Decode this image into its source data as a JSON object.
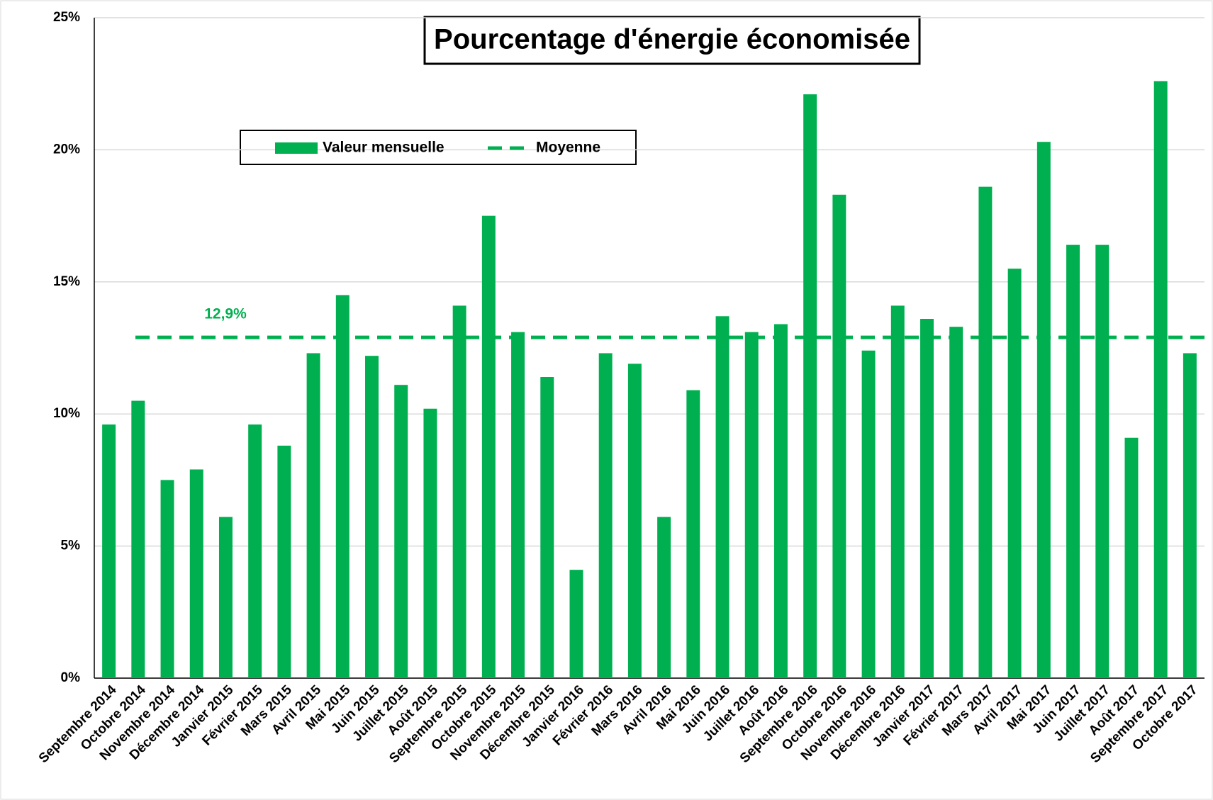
{
  "chart_data": {
    "type": "bar",
    "title": "Pourcentage d'énergie économisée",
    "categories": [
      "Septembre 2014",
      "Octobre 2014",
      "Novembre 2014",
      "Décembre 2014",
      "Janvier 2015",
      "Février 2015",
      "Mars 2015",
      "Avril 2015",
      "Mai 2015",
      "Juin 2015",
      "Juillet 2015",
      "Août 2015",
      "Septembre 2015",
      "Octobre 2015",
      "Novembre 2015",
      "Décembre 2015",
      "Janvier 2016",
      "Février 2016",
      "Mars 2016",
      "Avril 2016",
      "Mai 2016",
      "Juin 2016",
      "Juillet 2016",
      "Août 2016",
      "Septembre 2016",
      "Octobre 2016",
      "Novembre 2016",
      "Décembre 2016",
      "Janvier 2017",
      "Février 2017",
      "Mars 2017",
      "Avril 2017",
      "Mai 2017",
      "Juin 2017",
      "Juillet 2017",
      "Août 2017",
      "Septembre 2017",
      "Octobre 2017"
    ],
    "series": [
      {
        "name": "Valeur mensuelle",
        "color": "#00b050",
        "values": [
          9.6,
          10.5,
          7.5,
          7.9,
          6.1,
          9.6,
          8.8,
          12.3,
          14.5,
          12.2,
          11.1,
          10.2,
          14.1,
          17.5,
          13.1,
          11.4,
          4.1,
          12.3,
          11.9,
          6.1,
          10.9,
          13.7,
          13.1,
          13.4,
          22.1,
          18.3,
          12.4,
          14.1,
          13.6,
          13.3,
          18.6,
          15.5,
          20.3,
          16.4,
          16.4,
          9.1,
          22.6,
          12.3
        ]
      }
    ],
    "mean": {
      "name": "Moyenne",
      "value": 12.9,
      "label": "12,9%",
      "color": "#00b050"
    },
    "ylim": [
      0,
      25
    ],
    "yticks": [
      {
        "value": 0,
        "label": "0%"
      },
      {
        "value": 5,
        "label": "5%"
      },
      {
        "value": 10,
        "label": "10%"
      },
      {
        "value": 15,
        "label": "15%"
      },
      {
        "value": 20,
        "label": "20%"
      },
      {
        "value": 25,
        "label": "25%"
      }
    ],
    "grid": true
  }
}
